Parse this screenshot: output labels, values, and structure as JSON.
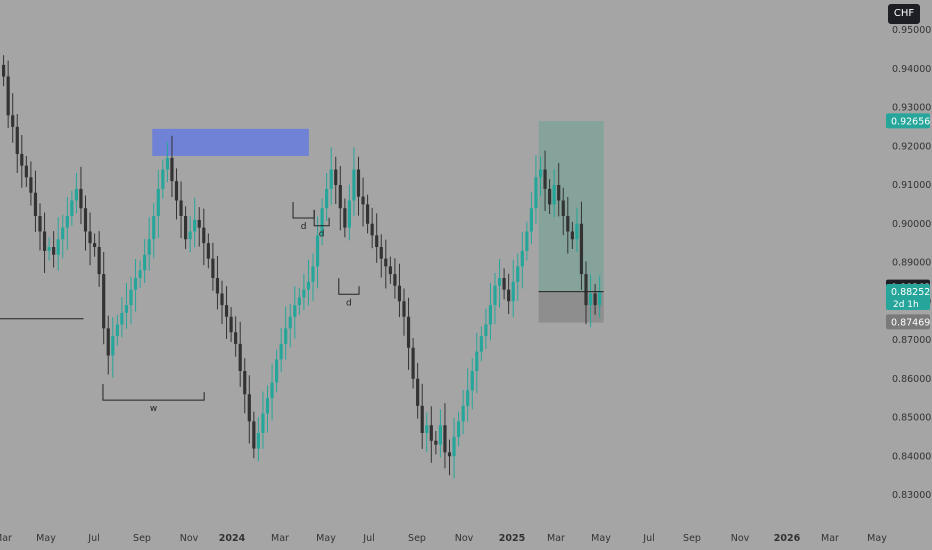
{
  "currency_button": "CHF",
  "colors": {
    "background": "#a5a5a5",
    "up_candle": "#26a69a",
    "down_candle": "#333333",
    "axis_text": "#333333",
    "supply_zone": "#6b7fd7",
    "profit_zone": "#82a39a",
    "loss_zone": "#8c8c8c",
    "price_badge_current": "#1e1f24",
    "price_badge_green": "#26a69a",
    "price_badge_grey": "#7a7a7a"
  },
  "chart_data": {
    "type": "candlestick",
    "ylim": [
      0.825,
      0.955
    ],
    "y_ticks": [
      {
        "value": 0.95,
        "label": "0.95000"
      },
      {
        "value": 0.94,
        "label": "0.94000"
      },
      {
        "value": 0.93,
        "label": "0.93000"
      },
      {
        "value": 0.92,
        "label": "0.92000"
      },
      {
        "value": 0.91,
        "label": "0.91000"
      },
      {
        "value": 0.9,
        "label": "0.90000"
      },
      {
        "value": 0.89,
        "label": "0.89000"
      },
      {
        "value": 0.88,
        "label": "0.88000"
      },
      {
        "value": 0.87,
        "label": "0.87000"
      },
      {
        "value": 0.86,
        "label": "0.86000"
      },
      {
        "value": 0.85,
        "label": "0.85000"
      },
      {
        "value": 0.84,
        "label": "0.84000"
      },
      {
        "value": 0.83,
        "label": "0.83000"
      }
    ],
    "x_ticks": [
      {
        "label": "Mar",
        "bold": false
      },
      {
        "label": "May",
        "bold": false
      },
      {
        "label": "Jul",
        "bold": false
      },
      {
        "label": "Sep",
        "bold": false
      },
      {
        "label": "Nov",
        "bold": false
      },
      {
        "label": "2024",
        "bold": true
      },
      {
        "label": "Mar",
        "bold": false
      },
      {
        "label": "May",
        "bold": false
      },
      {
        "label": "Jul",
        "bold": false
      },
      {
        "label": "Sep",
        "bold": false
      },
      {
        "label": "Nov",
        "bold": false
      },
      {
        "label": "2025",
        "bold": true
      },
      {
        "label": "Mar",
        "bold": false
      },
      {
        "label": "May",
        "bold": false
      },
      {
        "label": "Jul",
        "bold": false
      },
      {
        "label": "Sep",
        "bold": false
      },
      {
        "label": "Nov",
        "bold": false
      },
      {
        "label": "2026",
        "bold": true
      },
      {
        "label": "Mar",
        "bold": false
      },
      {
        "label": "May",
        "bold": false
      }
    ],
    "closes": [
      0.938,
      0.928,
      0.925,
      0.918,
      0.915,
      0.912,
      0.908,
      0.902,
      0.898,
      0.893,
      0.894,
      0.892,
      0.896,
      0.899,
      0.902,
      0.906,
      0.909,
      0.904,
      0.898,
      0.895,
      0.894,
      0.887,
      0.873,
      0.866,
      0.871,
      0.874,
      0.877,
      0.879,
      0.883,
      0.886,
      0.888,
      0.892,
      0.896,
      0.902,
      0.909,
      0.914,
      0.917,
      0.911,
      0.906,
      0.902,
      0.896,
      0.898,
      0.901,
      0.899,
      0.895,
      0.891,
      0.886,
      0.882,
      0.879,
      0.876,
      0.872,
      0.869,
      0.862,
      0.856,
      0.849,
      0.842,
      0.846,
      0.851,
      0.855,
      0.859,
      0.865,
      0.869,
      0.873,
      0.876,
      0.879,
      0.881,
      0.883,
      0.885,
      0.889,
      0.897,
      0.904,
      0.909,
      0.914,
      0.91,
      0.904,
      0.899,
      0.906,
      0.914,
      0.907,
      0.905,
      0.9,
      0.897,
      0.894,
      0.891,
      0.889,
      0.887,
      0.884,
      0.88,
      0.876,
      0.868,
      0.86,
      0.853,
      0.846,
      0.848,
      0.844,
      0.843,
      0.848,
      0.841,
      0.84,
      0.845,
      0.849,
      0.853,
      0.857,
      0.862,
      0.867,
      0.871,
      0.874,
      0.879,
      0.884,
      0.886,
      0.883,
      0.88,
      0.885,
      0.889,
      0.893,
      0.898,
      0.904,
      0.912,
      0.914,
      0.909,
      0.905,
      0.91,
      0.906,
      0.902,
      0.898,
      0.896,
      0.9,
      0.887,
      0.879,
      0.882,
      0.879,
      0.8825
    ],
    "series": [],
    "annotations": [
      {
        "type": "zone",
        "name": "supply-zone",
        "x": [
          0.173,
          0.351
        ],
        "y": [
          0.9175,
          0.9245
        ]
      },
      {
        "type": "zone",
        "name": "target-zone",
        "x": [
          0.612,
          0.686
        ],
        "y": [
          0.8825,
          0.9265
        ]
      },
      {
        "type": "zone",
        "name": "stop-zone",
        "x": [
          0.612,
          0.686
        ],
        "y": [
          0.8745,
          0.8825
        ]
      },
      {
        "type": "hline",
        "name": "support-line",
        "x": [
          0.0,
          0.095
        ],
        "y": 0.8755
      },
      {
        "type": "label",
        "name": "w-bottom-label",
        "text": "w",
        "x": [
          0.117,
          0.232
        ],
        "y": 0.8545
      },
      {
        "type": "label",
        "name": "d-label-1",
        "text": "d",
        "x": [
          0.333,
          0.357
        ],
        "y": 0.9015
      },
      {
        "type": "label",
        "name": "d-label-2",
        "text": "d",
        "x": [
          0.357,
          0.374
        ],
        "y": 0.8995
      },
      {
        "type": "label",
        "name": "d-label-3",
        "text": "d",
        "x": [
          0.385,
          0.408
        ],
        "y": 0.8818
      }
    ],
    "price_labels": [
      {
        "value": 0.92656,
        "text": "0.92656",
        "style": "green"
      },
      {
        "value": 0.88363,
        "text": "0.88363",
        "style": "dark"
      },
      {
        "value": 0.88252,
        "text": "0.88252",
        "sub": "2d 1h",
        "style": "green"
      },
      {
        "value": 0.87469,
        "text": "0.87469",
        "style": "grey"
      }
    ]
  }
}
